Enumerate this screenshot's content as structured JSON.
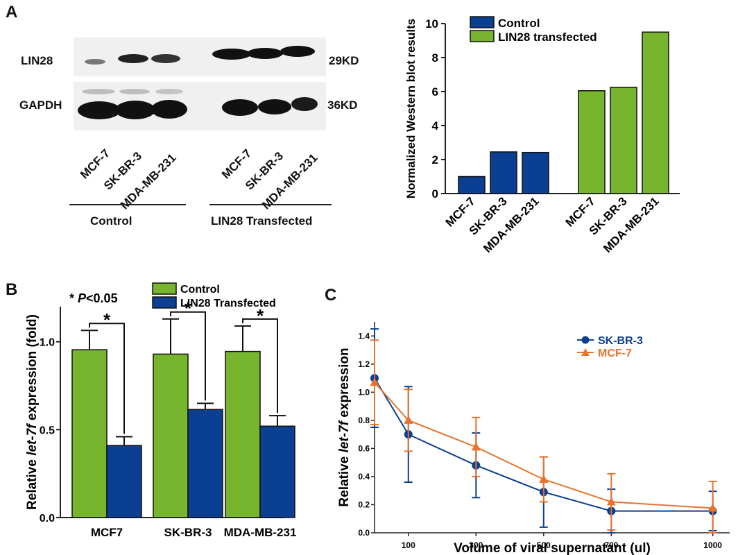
{
  "panel_labels": {
    "a": "A",
    "b": "B",
    "c": "C"
  },
  "blot": {
    "rows": [
      {
        "label": "LIN28",
        "size": "29KD"
      },
      {
        "label": "GAPDH",
        "size": "36KD"
      }
    ],
    "lanes": [
      "MCF-7",
      "SK-BR-3",
      "MDA-MB-231",
      "MCF-7",
      "SK-BR-3",
      "MDA-MB-231"
    ],
    "groups": [
      {
        "label": "Control"
      },
      {
        "label": "LIN28 Transfected"
      }
    ]
  },
  "colors": {
    "control_green": "#77b52f",
    "lin28_blue": "#0b3f91",
    "orange": "#e8732b",
    "axis": "#222222"
  },
  "chart_data": [
    {
      "id": "A-right",
      "type": "bar",
      "ylabel": "Normalized Western blot results",
      "ylim": [
        0,
        10
      ],
      "yticks": [
        "0",
        "2",
        "4",
        "6",
        "8",
        "10"
      ],
      "categories": [
        "MCF-7",
        "SK-BR-3",
        "MDA-MB-231"
      ],
      "series": [
        {
          "name": "Control",
          "color": "#0b3f91",
          "values": [
            1.0,
            2.45,
            2.42
          ]
        },
        {
          "name": "LIN28 transfected",
          "color": "#77b52f",
          "values": [
            6.05,
            6.25,
            9.5
          ]
        }
      ],
      "legend": "top-left"
    },
    {
      "id": "B",
      "type": "bar",
      "ylabel_prefix": "Relative ",
      "ylabel_italic": "let-7f",
      "ylabel_suffix": " expression (fold)",
      "ylim": [
        0,
        1.2
      ],
      "yticks": [
        "0.0",
        "0.5",
        "1.0"
      ],
      "categories": [
        "MCF7",
        "SK-BR-3",
        "MDA-MB-231"
      ],
      "series": [
        {
          "name": "Control",
          "color": "#77b52f",
          "values": [
            0.955,
            0.93,
            0.945
          ],
          "errors": [
            0.11,
            0.2,
            0.145
          ]
        },
        {
          "name": "LIN28 Transfected",
          "color": "#0b3f91",
          "values": [
            0.41,
            0.615,
            0.52
          ],
          "errors": [
            0.05,
            0.035,
            0.06
          ]
        }
      ],
      "significance": [
        "*",
        "*",
        "*"
      ],
      "note_star": "*",
      "note_p": "P",
      "note_rest": "<0.05",
      "legend": "top"
    },
    {
      "id": "C",
      "type": "line",
      "xlabel": "Volume of viral supernatant (ul)",
      "ylabel_prefix": "Relative ",
      "ylabel_italic": "let-7f",
      "ylabel_suffix": " expression",
      "xlim": [
        0,
        1050
      ],
      "ylim": [
        0,
        1.5
      ],
      "xticks": [
        "100",
        "300",
        "500",
        "700",
        "1000"
      ],
      "yticks": [
        "0.0",
        "0.2",
        "0.4",
        "0.6",
        "0.8",
        "1.0",
        "1.2",
        "1.4"
      ],
      "x": [
        0,
        100,
        300,
        500,
        700,
        1000
      ],
      "series": [
        {
          "name": "SK-BR-3",
          "color": "#0b3f91",
          "marker": "circle",
          "values": [
            1.1,
            0.7,
            0.48,
            0.29,
            0.155,
            0.155
          ],
          "errors": [
            0.35,
            0.34,
            0.23,
            0.25,
            0.155,
            0.14
          ]
        },
        {
          "name": "MCF-7",
          "color": "#e8732b",
          "marker": "triangle",
          "values": [
            1.07,
            0.8,
            0.61,
            0.38,
            0.22,
            0.175
          ],
          "errors": [
            0.3,
            0.22,
            0.21,
            0.16,
            0.2,
            0.19
          ]
        }
      ],
      "legend": "top-right"
    }
  ]
}
